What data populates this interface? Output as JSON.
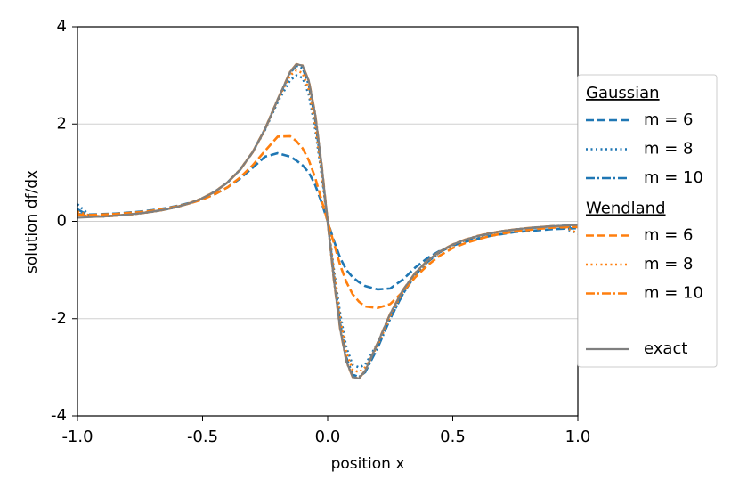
{
  "chart_data": {
    "type": "line",
    "x_label": "position x",
    "y_label": "solution df/dx",
    "x": [
      -1,
      -0.95,
      -0.9,
      -0.85,
      -0.8,
      -0.75,
      -0.7,
      -0.65,
      -0.6,
      -0.55,
      -0.5,
      -0.45,
      -0.4,
      -0.35,
      -0.3,
      -0.25,
      -0.2,
      -0.15,
      -0.125,
      -0.1,
      -0.075,
      -0.05,
      -0.025,
      0,
      0.025,
      0.05,
      0.075,
      0.1,
      0.125,
      0.15,
      0.2,
      0.25,
      0.3,
      0.35,
      0.4,
      0.45,
      0.5,
      0.55,
      0.6,
      0.65,
      0.7,
      0.75,
      0.8,
      0.85,
      0.9,
      0.95,
      1
    ],
    "xlim": [
      -1,
      1
    ],
    "ylim": [
      -4,
      4
    ],
    "xticks": [
      {
        "value": -1,
        "label": "-1.0"
      },
      -0.5,
      {
        "value": 0,
        "label": "0.0"
      },
      0.5,
      {
        "value": 1,
        "label": "1.0"
      }
    ],
    "yticks": [
      -4,
      -2,
      0,
      2,
      4
    ],
    "grid": true,
    "legend": "right",
    "series": [
      {
        "name": "m = 6",
        "group": "Gaussian",
        "color": "#1f77b4",
        "dash": "dashed",
        "values": [
          0.15,
          0.14,
          0.15,
          0.16,
          0.18,
          0.2,
          0.23,
          0.27,
          0.32,
          0.38,
          0.46,
          0.56,
          0.7,
          0.88,
          1.1,
          1.33,
          1.4,
          1.33,
          1.25,
          1.15,
          1.0,
          0.75,
          0.4,
          0,
          -0.4,
          -0.75,
          -1.0,
          -1.15,
          -1.25,
          -1.33,
          -1.4,
          -1.38,
          -1.2,
          -0.95,
          -0.75,
          -0.6,
          -0.5,
          -0.42,
          -0.36,
          -0.3,
          -0.26,
          -0.22,
          -0.2,
          -0.18,
          -0.16,
          -0.15,
          -0.14
        ]
      },
      {
        "name": "m = 8",
        "group": "Gaussian",
        "color": "#1f77b4",
        "dash": "dotted",
        "values": [
          0.35,
          0.12,
          0.1,
          0.117,
          0.138,
          0.165,
          0.199,
          0.243,
          0.3,
          0.375,
          0.476,
          0.612,
          0.8,
          1.06,
          1.42,
          1.88,
          2.45,
          2.9,
          3.0,
          2.95,
          2.6,
          1.9,
          1.0,
          0,
          -1.0,
          -1.9,
          -2.6,
          -2.95,
          -3.0,
          -2.95,
          -2.5,
          -2.0,
          -1.5,
          -1.1,
          -0.82,
          -0.63,
          -0.49,
          -0.39,
          -0.31,
          -0.25,
          -0.2,
          -0.17,
          -0.14,
          -0.12,
          -0.11,
          -0.15,
          -0.25
        ]
      },
      {
        "name": "m = 10",
        "group": "Gaussian",
        "color": "#1f77b4",
        "dash": "dashdot",
        "values": [
          0.25,
          0.1,
          0.1,
          0.117,
          0.138,
          0.165,
          0.199,
          0.243,
          0.3,
          0.375,
          0.476,
          0.612,
          0.8,
          1.06,
          1.42,
          1.9,
          2.5,
          3.05,
          3.2,
          3.15,
          2.8,
          2.1,
          1.1,
          0,
          -1.1,
          -2.1,
          -2.8,
          -3.15,
          -3.2,
          -3.1,
          -2.6,
          -2.0,
          -1.5,
          -1.1,
          -0.83,
          -0.63,
          -0.49,
          -0.38,
          -0.31,
          -0.25,
          -0.2,
          -0.17,
          -0.14,
          -0.12,
          -0.1,
          -0.09,
          -0.12
        ]
      },
      {
        "name": "m = 6",
        "group": "Wendland",
        "color": "#ff7f0e",
        "dash": "dashed",
        "values": [
          0.12,
          0.13,
          0.14,
          0.15,
          0.17,
          0.19,
          0.22,
          0.26,
          0.31,
          0.37,
          0.45,
          0.56,
          0.7,
          0.9,
          1.15,
          1.45,
          1.74,
          1.75,
          1.65,
          1.5,
          1.25,
          0.9,
          0.45,
          0,
          -0.45,
          -0.9,
          -1.25,
          -1.5,
          -1.65,
          -1.75,
          -1.78,
          -1.7,
          -1.45,
          -1.15,
          -0.9,
          -0.7,
          -0.55,
          -0.45,
          -0.37,
          -0.3,
          -0.25,
          -0.21,
          -0.18,
          -0.15,
          -0.13,
          -0.12,
          -0.11
        ]
      },
      {
        "name": "m = 8",
        "group": "Wendland",
        "color": "#ff7f0e",
        "dash": "dotted",
        "values": [
          0.2,
          0.12,
          0.1,
          0.117,
          0.138,
          0.165,
          0.199,
          0.243,
          0.3,
          0.375,
          0.476,
          0.612,
          0.8,
          1.06,
          1.42,
          1.9,
          2.5,
          3.0,
          3.1,
          3.05,
          2.7,
          2.0,
          1.05,
          0,
          -1.05,
          -2.0,
          -2.7,
          -3.05,
          -3.1,
          -3.0,
          -2.55,
          -1.95,
          -1.45,
          -1.08,
          -0.81,
          -0.62,
          -0.48,
          -0.38,
          -0.3,
          -0.24,
          -0.2,
          -0.17,
          -0.14,
          -0.12,
          -0.1,
          -0.12,
          -0.25
        ]
      },
      {
        "name": "m = 10",
        "group": "Wendland",
        "color": "#ff7f0e",
        "dash": "dashdot",
        "values": [
          0.15,
          0.1,
          0.1,
          0.117,
          0.138,
          0.165,
          0.199,
          0.243,
          0.3,
          0.375,
          0.476,
          0.612,
          0.8,
          1.06,
          1.42,
          1.9,
          2.5,
          3.07,
          3.23,
          3.2,
          2.88,
          2.21,
          1.21,
          0,
          -1.21,
          -2.21,
          -2.88,
          -3.2,
          -3.23,
          -3.07,
          -2.5,
          -1.9,
          -1.42,
          -1.06,
          -0.8,
          -0.612,
          -0.476,
          -0.375,
          -0.3,
          -0.243,
          -0.199,
          -0.165,
          -0.138,
          -0.117,
          -0.1,
          -0.1,
          -0.12
        ]
      },
      {
        "name": "exact",
        "color": "#7f7f7f",
        "dash": "solid",
        "values": [
          0.074,
          0.086,
          0.1,
          0.117,
          0.138,
          0.165,
          0.199,
          0.243,
          0.3,
          0.375,
          0.476,
          0.612,
          0.8,
          1.06,
          1.42,
          1.9,
          2.5,
          3.07,
          3.23,
          3.2,
          2.88,
          2.21,
          1.21,
          0,
          -1.21,
          -2.21,
          -2.88,
          -3.2,
          -3.23,
          -3.07,
          -2.5,
          -1.9,
          -1.42,
          -1.06,
          -0.8,
          -0.612,
          -0.476,
          -0.375,
          -0.3,
          -0.243,
          -0.199,
          -0.165,
          -0.138,
          -0.117,
          -0.1,
          -0.086,
          -0.074
        ]
      }
    ]
  }
}
